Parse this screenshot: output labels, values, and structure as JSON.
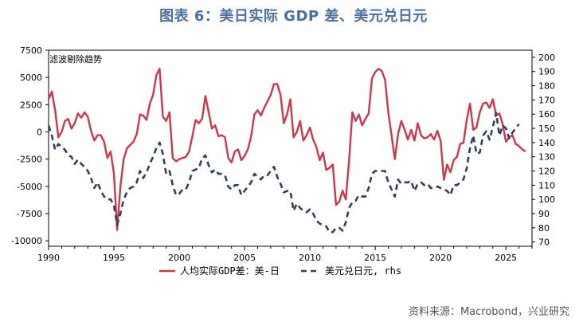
{
  "chart_data": {
    "type": "line",
    "title": "图表 6：美日实际 GDP 差、美元兑日元",
    "annotation": "滤波剔除趋势",
    "source": "资料来源：Macrobond，兴业研究",
    "x_range": [
      1990,
      2027
    ],
    "x_ticks": [
      1990,
      1995,
      2000,
      2005,
      2010,
      2015,
      2020,
      2025
    ],
    "left_axis": {
      "range": [
        -10500,
        7500
      ],
      "ticks": [
        7500,
        5000,
        2500,
        0,
        -2500,
        -5000,
        -7500,
        -10000
      ],
      "tick_labels": [
        "7500",
        "5000",
        "2500",
        "0",
        "-2500",
        "-5000",
        "-7500",
        "-10000"
      ]
    },
    "right_axis": {
      "range": [
        67,
        205
      ],
      "ticks": [
        70,
        80,
        90,
        100,
        110,
        120,
        130,
        140,
        150,
        160,
        170,
        180,
        190,
        200
      ],
      "tick_labels": [
        "70",
        "80",
        "90",
        "100",
        "110",
        "120",
        "130",
        "140",
        "150",
        "160",
        "170",
        "180",
        "190",
        "200"
      ]
    },
    "series": [
      {
        "name": "人均实际GDP差：美-日",
        "axis": "left",
        "color": "#c8394b",
        "dash": "solid",
        "points": [
          [
            1990.0,
            3000
          ],
          [
            1990.25,
            3700
          ],
          [
            1990.5,
            2000
          ],
          [
            1990.75,
            -500
          ],
          [
            1991.0,
            0
          ],
          [
            1991.25,
            1000
          ],
          [
            1991.5,
            1200
          ],
          [
            1991.75,
            300
          ],
          [
            1992.0,
            800
          ],
          [
            1992.25,
            1700
          ],
          [
            1992.5,
            1300
          ],
          [
            1992.75,
            1800
          ],
          [
            1993.0,
            1400
          ],
          [
            1993.25,
            100
          ],
          [
            1993.5,
            -800
          ],
          [
            1993.75,
            -300
          ],
          [
            1994.0,
            -300
          ],
          [
            1994.25,
            -900
          ],
          [
            1994.5,
            -2400
          ],
          [
            1994.75,
            -1800
          ],
          [
            1995.0,
            -3800
          ],
          [
            1995.25,
            -9000
          ],
          [
            1995.5,
            -5000
          ],
          [
            1995.75,
            -2500
          ],
          [
            1996.0,
            -1500
          ],
          [
            1996.25,
            -1200
          ],
          [
            1996.5,
            -900
          ],
          [
            1996.75,
            -200
          ],
          [
            1997.0,
            1600
          ],
          [
            1997.25,
            1500
          ],
          [
            1997.5,
            1100
          ],
          [
            1997.75,
            2600
          ],
          [
            1998.0,
            3400
          ],
          [
            1998.25,
            5200
          ],
          [
            1998.5,
            5800
          ],
          [
            1998.75,
            1400
          ],
          [
            1999.0,
            1000
          ],
          [
            1999.25,
            1800
          ],
          [
            1999.5,
            -2400
          ],
          [
            1999.75,
            -2700
          ],
          [
            2000.0,
            -2500
          ],
          [
            2000.25,
            -2400
          ],
          [
            2000.5,
            -2300
          ],
          [
            2000.75,
            -1800
          ],
          [
            2001.0,
            -400
          ],
          [
            2001.25,
            1100
          ],
          [
            2001.5,
            800
          ],
          [
            2001.75,
            1200
          ],
          [
            2002.0,
            3300
          ],
          [
            2002.25,
            1800
          ],
          [
            2002.5,
            300
          ],
          [
            2002.75,
            600
          ],
          [
            2003.0,
            -400
          ],
          [
            2003.25,
            -300
          ],
          [
            2003.5,
            -500
          ],
          [
            2003.75,
            -2400
          ],
          [
            2004.0,
            -2800
          ],
          [
            2004.25,
            -1800
          ],
          [
            2004.5,
            -1600
          ],
          [
            2004.75,
            -2600
          ],
          [
            2005.0,
            -2200
          ],
          [
            2005.25,
            -1600
          ],
          [
            2005.5,
            -400
          ],
          [
            2005.75,
            1600
          ],
          [
            2006.0,
            2000
          ],
          [
            2006.25,
            1500
          ],
          [
            2006.5,
            2200
          ],
          [
            2006.75,
            2800
          ],
          [
            2007.0,
            3400
          ],
          [
            2007.25,
            4400
          ],
          [
            2007.5,
            4400
          ],
          [
            2007.75,
            3400
          ],
          [
            2008.0,
            800
          ],
          [
            2008.25,
            1600
          ],
          [
            2008.5,
            3000
          ],
          [
            2008.75,
            -500
          ],
          [
            2009.0,
            0
          ],
          [
            2009.25,
            1000
          ],
          [
            2009.5,
            -800
          ],
          [
            2009.75,
            -300
          ],
          [
            2010.0,
            400
          ],
          [
            2010.25,
            -700
          ],
          [
            2010.5,
            -1400
          ],
          [
            2010.75,
            -2600
          ],
          [
            2011.0,
            -1900
          ],
          [
            2011.25,
            -3500
          ],
          [
            2011.5,
            -3300
          ],
          [
            2011.75,
            -3000
          ],
          [
            2012.0,
            -6700
          ],
          [
            2012.25,
            -6400
          ],
          [
            2012.5,
            -5400
          ],
          [
            2012.75,
            -6200
          ],
          [
            2013.0,
            -2600
          ],
          [
            2013.25,
            1800
          ],
          [
            2013.5,
            1000
          ],
          [
            2013.75,
            1600
          ],
          [
            2014.0,
            600
          ],
          [
            2014.25,
            1200
          ],
          [
            2014.5,
            1700
          ],
          [
            2014.75,
            4900
          ],
          [
            2015.0,
            5500
          ],
          [
            2015.25,
            5800
          ],
          [
            2015.5,
            5600
          ],
          [
            2015.75,
            4800
          ],
          [
            2016.0,
            1800
          ],
          [
            2016.25,
            -300
          ],
          [
            2016.5,
            -2500
          ],
          [
            2016.75,
            -200
          ],
          [
            2017.0,
            1000
          ],
          [
            2017.25,
            200
          ],
          [
            2017.5,
            -700
          ],
          [
            2017.75,
            200
          ],
          [
            2018.0,
            -800
          ],
          [
            2018.25,
            800
          ],
          [
            2018.5,
            -300
          ],
          [
            2018.75,
            -600
          ],
          [
            2019.0,
            -500
          ],
          [
            2019.25,
            -200
          ],
          [
            2019.5,
            -700
          ],
          [
            2019.75,
            100
          ],
          [
            2020.0,
            -800
          ],
          [
            2020.25,
            -4400
          ],
          [
            2020.5,
            -3000
          ],
          [
            2020.75,
            -3700
          ],
          [
            2021.0,
            -2600
          ],
          [
            2021.25,
            -2300
          ],
          [
            2021.5,
            -1100
          ],
          [
            2021.75,
            -1000
          ],
          [
            2022.0,
            1100
          ],
          [
            2022.25,
            2600
          ],
          [
            2022.5,
            200
          ],
          [
            2022.75,
            400
          ],
          [
            2023.0,
            1800
          ],
          [
            2023.25,
            2600
          ],
          [
            2023.5,
            2700
          ],
          [
            2023.75,
            2200
          ],
          [
            2024.0,
            3000
          ],
          [
            2024.25,
            1500
          ],
          [
            2024.5,
            1700
          ],
          [
            2024.75,
            700
          ],
          [
            2025.0,
            -900
          ],
          [
            2025.25,
            -500
          ],
          [
            2025.5,
            -300
          ],
          [
            2025.75,
            -1100
          ],
          [
            2026.0,
            -1300
          ],
          [
            2026.25,
            -1600
          ],
          [
            2026.5,
            -1800
          ]
        ]
      },
      {
        "name": "美元兑日元, rhs",
        "axis": "right",
        "color": "#2f3f5e",
        "dash": "dashed",
        "points": [
          [
            1990.0,
            152
          ],
          [
            1990.25,
            145
          ],
          [
            1990.5,
            135
          ],
          [
            1990.75,
            139
          ],
          [
            1991.0,
            137
          ],
          [
            1991.25,
            135
          ],
          [
            1991.5,
            131
          ],
          [
            1991.75,
            130
          ],
          [
            1992.0,
            125
          ],
          [
            1992.25,
            128
          ],
          [
            1992.5,
            125
          ],
          [
            1992.75,
            123
          ],
          [
            1993.0,
            120
          ],
          [
            1993.25,
            115
          ],
          [
            1993.5,
            108
          ],
          [
            1993.75,
            112
          ],
          [
            1994.0,
            106
          ],
          [
            1994.25,
            102
          ],
          [
            1994.5,
            100
          ],
          [
            1994.75,
            100
          ],
          [
            1995.0,
            96
          ],
          [
            1995.25,
            82
          ],
          [
            1995.5,
            90
          ],
          [
            1995.75,
            100
          ],
          [
            1996.0,
            105
          ],
          [
            1996.25,
            108
          ],
          [
            1996.5,
            109
          ],
          [
            1996.75,
            112
          ],
          [
            1997.0,
            120
          ],
          [
            1997.25,
            115
          ],
          [
            1997.5,
            119
          ],
          [
            1997.75,
            125
          ],
          [
            1998.0,
            130
          ],
          [
            1998.25,
            136
          ],
          [
            1998.5,
            140
          ],
          [
            1998.75,
            132
          ],
          [
            1999.0,
            118
          ],
          [
            1999.25,
            120
          ],
          [
            1999.5,
            110
          ],
          [
            1999.75,
            103
          ],
          [
            2000.0,
            104
          ],
          [
            2000.25,
            107
          ],
          [
            2000.5,
            107
          ],
          [
            2000.75,
            112
          ],
          [
            2001.0,
            120
          ],
          [
            2001.25,
            121
          ],
          [
            2001.5,
            122
          ],
          [
            2001.75,
            129
          ],
          [
            2002.0,
            131
          ],
          [
            2002.25,
            124
          ],
          [
            2002.5,
            119
          ],
          [
            2002.75,
            121
          ],
          [
            2003.0,
            118
          ],
          [
            2003.25,
            118
          ],
          [
            2003.5,
            117
          ],
          [
            2003.75,
            109
          ],
          [
            2004.0,
            107
          ],
          [
            2004.25,
            110
          ],
          [
            2004.5,
            110
          ],
          [
            2004.75,
            103
          ],
          [
            2005.0,
            106
          ],
          [
            2005.25,
            109
          ],
          [
            2005.5,
            112
          ],
          [
            2005.75,
            118
          ],
          [
            2006.0,
            116
          ],
          [
            2006.25,
            114
          ],
          [
            2006.5,
            117
          ],
          [
            2006.75,
            117
          ],
          [
            2007.0,
            120
          ],
          [
            2007.25,
            123
          ],
          [
            2007.5,
            116
          ],
          [
            2007.75,
            111
          ],
          [
            2008.0,
            105
          ],
          [
            2008.25,
            106
          ],
          [
            2008.5,
            106
          ],
          [
            2008.75,
            92
          ],
          [
            2009.0,
            97
          ],
          [
            2009.25,
            94
          ],
          [
            2009.5,
            92
          ],
          [
            2009.75,
            91
          ],
          [
            2010.0,
            93
          ],
          [
            2010.25,
            90
          ],
          [
            2010.5,
            85
          ],
          [
            2010.75,
            83
          ],
          [
            2011.0,
            82
          ],
          [
            2011.25,
            81
          ],
          [
            2011.5,
            77
          ],
          [
            2011.75,
            77
          ],
          [
            2012.0,
            80
          ],
          [
            2012.25,
            80
          ],
          [
            2012.5,
            78
          ],
          [
            2012.75,
            84
          ],
          [
            2013.0,
            94
          ],
          [
            2013.25,
            98
          ],
          [
            2013.5,
            99
          ],
          [
            2013.75,
            103
          ],
          [
            2014.0,
            102
          ],
          [
            2014.25,
            102
          ],
          [
            2014.5,
            108
          ],
          [
            2014.75,
            118
          ],
          [
            2015.0,
            120
          ],
          [
            2015.25,
            120
          ],
          [
            2015.5,
            120
          ],
          [
            2015.75,
            120
          ],
          [
            2016.0,
            112
          ],
          [
            2016.25,
            107
          ],
          [
            2016.5,
            102
          ],
          [
            2016.75,
            114
          ],
          [
            2017.0,
            111
          ],
          [
            2017.25,
            112
          ],
          [
            2017.5,
            112
          ],
          [
            2017.75,
            113
          ],
          [
            2018.0,
            106
          ],
          [
            2018.25,
            111
          ],
          [
            2018.5,
            112
          ],
          [
            2018.75,
            110
          ],
          [
            2019.0,
            111
          ],
          [
            2019.25,
            108
          ],
          [
            2019.5,
            108
          ],
          [
            2019.75,
            109
          ],
          [
            2020.0,
            108
          ],
          [
            2020.25,
            107
          ],
          [
            2020.5,
            106
          ],
          [
            2020.75,
            103
          ],
          [
            2021.0,
            110
          ],
          [
            2021.25,
            110
          ],
          [
            2021.5,
            112
          ],
          [
            2021.75,
            114
          ],
          [
            2022.0,
            122
          ],
          [
            2022.25,
            136
          ],
          [
            2022.5,
            145
          ],
          [
            2022.75,
            132
          ],
          [
            2023.0,
            133
          ],
          [
            2023.25,
            145
          ],
          [
            2023.5,
            148
          ],
          [
            2023.75,
            142
          ],
          [
            2024.0,
            151
          ],
          [
            2024.25,
            161
          ],
          [
            2024.5,
            145
          ],
          [
            2024.75,
            152
          ],
          [
            2025.0,
            150
          ],
          [
            2025.25,
            143
          ],
          [
            2025.5,
            147
          ],
          [
            2025.75,
            150
          ],
          [
            2026.0,
            153
          ]
        ]
      }
    ]
  }
}
